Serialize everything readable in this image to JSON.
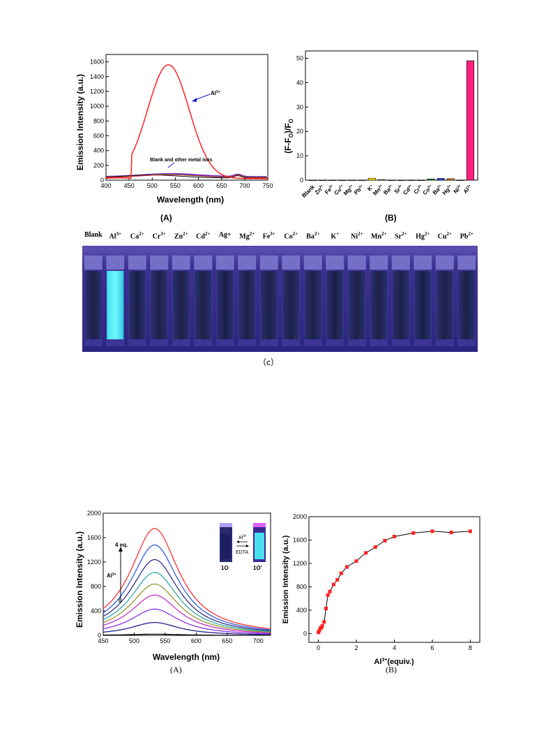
{
  "figure1": {
    "panelA": {
      "label": "(A)",
      "xlabel": "Wavelength (nm)",
      "ylabel": "Emission Intensity (a.u.)",
      "xticks": [
        "400",
        "450",
        "500",
        "550",
        "600",
        "650",
        "700",
        "750"
      ],
      "yticks": [
        "0",
        "200",
        "400",
        "600",
        "800",
        "1000",
        "1200",
        "1400",
        "1600"
      ],
      "annotation_al": "Al",
      "annotation_al_sup": "3+",
      "annotation_blank": "Blank and other metal ions"
    },
    "panelB": {
      "label": "(B)",
      "ylabel_main": "(F-F",
      "ylabel_sub1": "O",
      "ylabel_mid": ")/F",
      "ylabel_sub2": "O",
      "yticks": [
        "0",
        "10",
        "20",
        "30",
        "40",
        "50"
      ],
      "categories": [
        {
          "name": "Blank",
          "sup": ""
        },
        {
          "name": "Zn",
          "sup": "2+"
        },
        {
          "name": "Fe",
          "sup": "3+"
        },
        {
          "name": "Cu",
          "sup": "2+"
        },
        {
          "name": "Mg",
          "sup": "2+"
        },
        {
          "name": "Pb",
          "sup": "2+"
        },
        {
          "name": "K",
          "sup": "+"
        },
        {
          "name": "Mn",
          "sup": "2+"
        },
        {
          "name": "Ba",
          "sup": "2+"
        },
        {
          "name": "Sr",
          "sup": "2+"
        },
        {
          "name": "Cd",
          "sup": "2+"
        },
        {
          "name": "Cr",
          "sup": "3+"
        },
        {
          "name": "Co",
          "sup": "2+"
        },
        {
          "name": "Ba",
          "sup": "2+"
        },
        {
          "name": "Hg",
          "sup": "2+"
        },
        {
          "name": "Ni",
          "sup": "2+"
        },
        {
          "name": "Al",
          "sup": "3+"
        }
      ]
    },
    "panelC": {
      "label": "（c）",
      "ions": [
        {
          "name": "Blank",
          "sup": ""
        },
        {
          "name": "Al",
          "sup": "3+"
        },
        {
          "name": "Ca",
          "sup": "2+"
        },
        {
          "name": "Cr",
          "sup": "3+"
        },
        {
          "name": "Zn",
          "sup": "2+"
        },
        {
          "name": "Cd",
          "sup": "2+"
        },
        {
          "name": "Ag+",
          "sup": ""
        },
        {
          "name": "Mg",
          "sup": "2+"
        },
        {
          "name": "Fe",
          "sup": "3+"
        },
        {
          "name": "Co",
          "sup": "2+"
        },
        {
          "name": "Ba",
          "sup": "2+"
        },
        {
          "name": "K",
          "sup": "+"
        },
        {
          "name": "Ni",
          "sup": "2+"
        },
        {
          "name": "Mn",
          "sup": "2+"
        },
        {
          "name": "Sr",
          "sup": "2+"
        },
        {
          "name": "Hg",
          "sup": "2+"
        },
        {
          "name": "Cu",
          "sup": "2+"
        },
        {
          "name": "Pb",
          "sup": "2+"
        }
      ]
    }
  },
  "figure2": {
    "panelA": {
      "label": "(A)",
      "xlabel": "Wavelength (nm)",
      "ylabel": "Emission Intensity (a.u.)",
      "xticks": [
        "450",
        "500",
        "550",
        "600",
        "650",
        "700"
      ],
      "yticks": [
        "0",
        "400",
        "800",
        "1200",
        "1600",
        "2000"
      ],
      "arrow_top": "4 eq.",
      "arrow_bottom": "0",
      "arrow_ion": "Al",
      "arrow_ion_sup": "3+",
      "inset_left": "1O",
      "inset_right": "1O'",
      "inset_top": "Al",
      "inset_top_sup": "3+",
      "inset_bottom": "EDTA"
    },
    "panelB": {
      "label": "(B)",
      "xlabel_main": "Al",
      "xlabel_sup": "3+",
      "xlabel_rest": "(equiv.)",
      "ylabel": "Emission Intensity (a.u.)",
      "xticks": [
        "0",
        "2",
        "4",
        "6",
        "8"
      ],
      "yticks": [
        "0",
        "400",
        "800",
        "1200",
        "1600",
        "2000"
      ]
    }
  },
  "chart_data": [
    {
      "type": "line",
      "xlabel": "Wavelength (nm)",
      "ylabel": "Emission Intensity (a.u.)",
      "xlim": [
        400,
        750
      ],
      "ylim": [
        0,
        1700
      ],
      "series": [
        {
          "name": "Al3+",
          "color": "#ff2020",
          "peak_x": 535,
          "peak_y": 1560,
          "baseline": 20
        },
        {
          "name": "Blank and other metal ions",
          "color": "#2030c0",
          "peak_x": 530,
          "peak_y": 90,
          "baseline": 50
        }
      ]
    },
    {
      "type": "bar",
      "categories": [
        "Blank",
        "Zn2+",
        "Fe3+",
        "Cu2+",
        "Mg2+",
        "Pb2+",
        "K+",
        "Mn2+",
        "Ba2+",
        "Sr2+",
        "Cd2+",
        "Cr3+",
        "Co2+",
        "Ba2+",
        "Hg2+",
        "Ni2+",
        "Al3+"
      ],
      "values": [
        0,
        0,
        0,
        0,
        0,
        0,
        0.8,
        0.2,
        0,
        0,
        0,
        0,
        0.5,
        0.7,
        0.6,
        0,
        49
      ],
      "colors": [
        "#888888",
        "#888888",
        "#888888",
        "#888888",
        "#888888",
        "#888888",
        "#ffe800",
        "#888888",
        "#888888",
        "#888888",
        "#888888",
        "#888888",
        "#20a040",
        "#2040d0",
        "#e07020",
        "#888888",
        "#ff2080"
      ],
      "ylabel": "(F-FO)/FO",
      "ylim": [
        0,
        53
      ]
    },
    {
      "type": "line",
      "xlabel": "Wavelength (nm)",
      "ylabel": "Emission Intensity (a.u.)",
      "xlim": [
        450,
        720
      ],
      "ylim": [
        0,
        2000
      ],
      "series": [
        {
          "peak": 20,
          "color": "#000000"
        },
        {
          "peak": 210,
          "color": "#101080"
        },
        {
          "peak": 430,
          "color": "#8020e0"
        },
        {
          "peak": 660,
          "color": "#c020c0"
        },
        {
          "peak": 840,
          "color": "#909020"
        },
        {
          "peak": 1030,
          "color": "#20a0a0"
        },
        {
          "peak": 1240,
          "color": "#202080"
        },
        {
          "peak": 1480,
          "color": "#2050e0"
        },
        {
          "peak": 1750,
          "color": "#ff2020"
        }
      ]
    },
    {
      "type": "scatter",
      "xlabel": "Al3+(equiv.)",
      "ylabel": "Emission Intensity (a.u.)",
      "xlim": [
        -0.5,
        8.5
      ],
      "ylim": [
        -150,
        2000
      ],
      "x": [
        0,
        0.05,
        0.1,
        0.15,
        0.2,
        0.3,
        0.4,
        0.5,
        0.6,
        0.8,
        1.0,
        1.2,
        1.5,
        2.0,
        2.5,
        3.0,
        3.5,
        4.0,
        5.0,
        6.0,
        7.0,
        8.0
      ],
      "y": [
        20,
        50,
        90,
        100,
        130,
        200,
        430,
        660,
        720,
        840,
        920,
        1030,
        1140,
        1240,
        1380,
        1480,
        1590,
        1660,
        1720,
        1750,
        1730,
        1750
      ]
    }
  ]
}
